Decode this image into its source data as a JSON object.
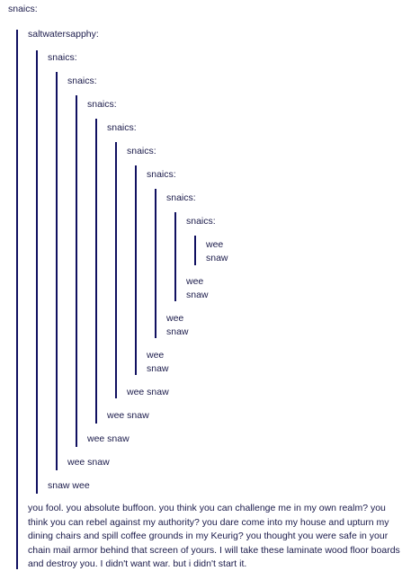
{
  "post": {
    "author_top": "snaics:",
    "reblog_author": "saltwatersapphy:",
    "nested_authors": [
      "snaics:",
      "snaics:",
      "snaics:",
      "snaics:",
      "snaics:",
      "snaics:",
      "snaics:",
      "snaics:"
    ],
    "replies": {
      "l9_line1": "wee",
      "l9_line2": "snaw",
      "l8_line1": "wee",
      "l8_line2": "snaw",
      "l7_line1": "wee",
      "l7_line2": "snaw",
      "l6_line1": "wee",
      "l6_line2": "snaw",
      "l5": "wee snaw",
      "l4": "wee snaw",
      "l3": "wee snaw",
      "l2": "wee snaw",
      "l1": "snaw wee"
    },
    "final_message": "you fool. you absolute buffoon. you think you can challenge me in my own realm? you think you can rebel against my authority? you dare come into my house and upturn my dining chairs and spill coffee grounds in my Keurig? you thought you were safe in your chain mail armor behind that screen of yours. I will take these laminate wood floor boards and destroy you. I didn't want war. but i didn't start it."
  }
}
